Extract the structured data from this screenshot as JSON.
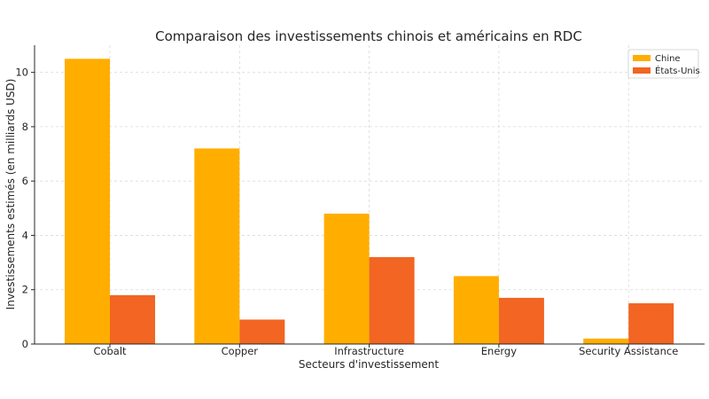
{
  "chart_data": {
    "type": "bar",
    "title": "Comparaison des investissements chinois et américains en RDC",
    "xlabel": "Secteurs d'investissement",
    "ylabel": "Investissements estimés (en milliards USD)",
    "categories": [
      "Cobalt",
      "Copper",
      "Infrastructure",
      "Energy",
      "Security Assistance"
    ],
    "series": [
      {
        "name": "Chine",
        "color": "#FFAE00",
        "values": [
          10.5,
          7.2,
          4.8,
          2.5,
          0.2
        ]
      },
      {
        "name": "États-Unis",
        "color": "#F26522",
        "values": [
          1.8,
          0.9,
          3.2,
          1.7,
          1.5
        ]
      }
    ],
    "ylim": [
      0,
      11
    ],
    "yticks": [
      0,
      2,
      4,
      6,
      8,
      10
    ],
    "grid": true,
    "legend_position": "top-right"
  }
}
